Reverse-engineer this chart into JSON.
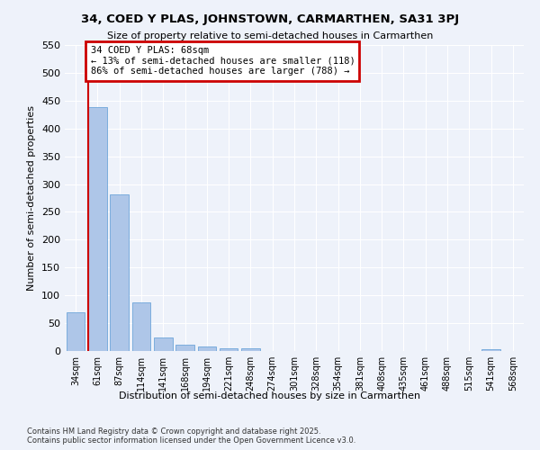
{
  "title": "34, COED Y PLAS, JOHNSTOWN, CARMARTHEN, SA31 3PJ",
  "subtitle": "Size of property relative to semi-detached houses in Carmarthen",
  "xlabel": "Distribution of semi-detached houses by size in Carmarthen",
  "ylabel": "Number of semi-detached properties",
  "bar_color": "#aec6e8",
  "bar_edge_color": "#5b9bd5",
  "annotation_box_color": "#cc0000",
  "property_line_color": "#cc0000",
  "background_color": "#eef2fa",
  "grid_color": "#ffffff",
  "categories": [
    "34sqm",
    "61sqm",
    "87sqm",
    "114sqm",
    "141sqm",
    "168sqm",
    "194sqm",
    "221sqm",
    "248sqm",
    "274sqm",
    "301sqm",
    "328sqm",
    "354sqm",
    "381sqm",
    "408sqm",
    "435sqm",
    "461sqm",
    "488sqm",
    "515sqm",
    "541sqm",
    "568sqm"
  ],
  "values": [
    70,
    438,
    281,
    88,
    25,
    11,
    8,
    5,
    5,
    0,
    0,
    0,
    0,
    0,
    0,
    0,
    0,
    0,
    0,
    4,
    0
  ],
  "property_bar_index": 1,
  "annotation_text": "34 COED Y PLAS: 68sqm\n← 13% of semi-detached houses are smaller (118)\n86% of semi-detached houses are larger (788) →",
  "footnote": "Contains HM Land Registry data © Crown copyright and database right 2025.\nContains public sector information licensed under the Open Government Licence v3.0.",
  "ylim": [
    0,
    550
  ],
  "yticks": [
    0,
    50,
    100,
    150,
    200,
    250,
    300,
    350,
    400,
    450,
    500,
    550
  ]
}
